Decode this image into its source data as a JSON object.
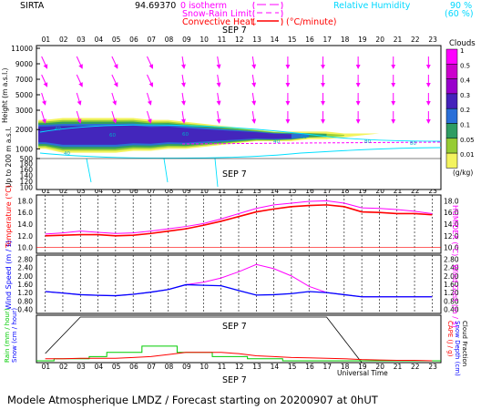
{
  "header": {
    "station": "SIRTA",
    "coords": "94.69370",
    "legend_isotherm": "0 isotherm",
    "legend_snow_rain": "Snow-Rain Limit",
    "legend_convective": "Convective Heat.",
    "legend_convective_unit": "(°C/minute)",
    "legend_rh": "Relative Humidity",
    "rh_90": "90 %",
    "rh_60": "(60 %)"
  },
  "colors": {
    "isotherm": "#ff00ff",
    "convective": "#ff0000",
    "rh": "#00e0ff",
    "temperature": "#ff0000",
    "humidex": "#ff00ff",
    "wind": "#0000ff",
    "gust": "#ff00ff",
    "rain": "#00cc00",
    "snow": "#000000",
    "cape": "#ff0000"
  },
  "date_label": "SEP  7",
  "hours": [
    "01",
    "02",
    "03",
    "04",
    "05",
    "06",
    "07",
    "08",
    "09",
    "10",
    "11",
    "12",
    "13",
    "14",
    "15",
    "16",
    "17",
    "18",
    "19",
    "20",
    "21",
    "22",
    "23"
  ],
  "panel_clouds": {
    "ylabel": "Height  (m a.s.l.)",
    "ylabel2": "Up to 200 m a.s.l.",
    "yticks_upper": [
      "11000",
      "9000",
      "7000",
      "5000",
      "3000",
      "2000",
      "1000",
      "500"
    ],
    "yticks_lower": [
      "180",
      "160",
      "140",
      "120",
      "100"
    ],
    "legend_title": "Clouds",
    "legend_unit": "(g/kg)",
    "legend_values": [
      "1",
      "0.5",
      "0.4",
      "0.3",
      "0.2",
      "0.1",
      "0.05",
      "0.01"
    ],
    "legend_colors": [
      "#ff00ff",
      "#cc00cc",
      "#9900cc",
      "#4422bb",
      "#2a6fd8",
      "#2f9c62",
      "#96cc33",
      "#f3f35e"
    ],
    "contour_labels": [
      "40",
      "40",
      "60",
      "60",
      "40",
      "60",
      "80",
      "80"
    ]
  },
  "panel_temp": {
    "ylabel": "Temperature (°C)",
    "ylabel_right": "HUMIDEX (°C)",
    "yticks": [
      "18.0",
      "16.0",
      "14.0",
      "12.0",
      "10.0"
    ]
  },
  "panel_wind": {
    "ylabel": "Wind Speed (m / s)",
    "ylabel_right": "Wind Gust (m / s)",
    "yticks": [
      "2.80",
      "2.40",
      "2.00",
      "1.60",
      "1.20",
      "0.80",
      "0.40"
    ]
  },
  "panel_precip": {
    "ylabel": "Rain (mm / hour)",
    "ylabel2": "Snow (cm / hour)",
    "ylabel_right": "CAPE (J / g)",
    "ylabel_right2": "Snow Depth (cm)",
    "ylabel_right3": "Cloud Fraction"
  },
  "xlabel": "Universal Time",
  "footer": "Modele Atmospherique LMDZ / Forecast starting on 20200907 at 0hUT",
  "chart_data": [
    {
      "type": "heatmap",
      "title": "Clouds",
      "x": [
        "01",
        "02",
        "03",
        "04",
        "05",
        "06",
        "07",
        "08",
        "09",
        "10",
        "11",
        "12",
        "13",
        "14",
        "15",
        "16",
        "17",
        "18",
        "19",
        "20",
        "21",
        "22",
        "23"
      ],
      "ylabel": "Height (m a.s.l.)",
      "unit": "g/kg",
      "levels": [
        0.01,
        0.05,
        0.1,
        0.2,
        0.3,
        0.4,
        0.5,
        1
      ],
      "layer_base_m": [
        1000,
        800,
        800,
        800,
        800,
        900,
        900,
        1000,
        1000,
        1100,
        1200,
        1300,
        1400,
        1400,
        1400,
        1500,
        1500,
        1600,
        1700,
        1800,
        1800,
        1800,
        1800
      ],
      "layer_top_m": [
        2500,
        2600,
        2600,
        2600,
        2600,
        2600,
        2500,
        2500,
        2400,
        2300,
        2200,
        2100,
        2000,
        1900,
        1900,
        1900,
        1900,
        1800,
        1800,
        1800,
        1800,
        1800,
        1800
      ]
    },
    {
      "type": "line",
      "x": [
        "01",
        "02",
        "03",
        "04",
        "05",
        "06",
        "07",
        "08",
        "09",
        "10",
        "11",
        "12",
        "13",
        "14",
        "15",
        "16",
        "17",
        "18",
        "19",
        "20",
        "21",
        "22",
        "23"
      ],
      "ylabel": "Temperature (°C)",
      "ylim": [
        9,
        19
      ],
      "series": [
        {
          "name": "Temperature",
          "values": [
            12.0,
            12.1,
            12.2,
            12.2,
            12.0,
            12.1,
            12.4,
            12.8,
            13.2,
            13.8,
            14.5,
            15.3,
            16.1,
            16.6,
            17.0,
            17.2,
            17.3,
            17.0,
            16.1,
            16.0,
            15.8,
            15.8,
            15.6
          ]
        },
        {
          "name": "HUMIDEX",
          "values": [
            12.3,
            12.5,
            12.8,
            12.6,
            12.4,
            12.5,
            12.8,
            13.2,
            13.6,
            14.1,
            14.9,
            15.8,
            16.7,
            17.3,
            17.6,
            17.9,
            18.0,
            17.6,
            16.8,
            16.7,
            16.5,
            16.2,
            15.8
          ]
        }
      ]
    },
    {
      "type": "line",
      "x": [
        "01",
        "02",
        "03",
        "04",
        "05",
        "06",
        "07",
        "08",
        "09",
        "10",
        "11",
        "12",
        "13",
        "14",
        "15",
        "16",
        "17",
        "18",
        "19",
        "20",
        "21",
        "22",
        "23"
      ],
      "ylabel": "Wind Speed (m / s)",
      "ylim": [
        0.2,
        3.0
      ],
      "series": [
        {
          "name": "Wind Speed",
          "values": [
            1.25,
            1.18,
            1.1,
            1.07,
            1.05,
            1.12,
            1.22,
            1.35,
            1.58,
            1.55,
            1.53,
            1.3,
            1.08,
            1.1,
            1.15,
            1.25,
            1.2,
            1.1,
            1.0,
            1.0,
            1.0,
            1.0,
            1.0
          ]
        },
        {
          "name": "Wind Gust",
          "values": [
            1.25,
            1.18,
            1.1,
            1.07,
            1.05,
            1.12,
            1.22,
            1.35,
            1.58,
            1.7,
            1.9,
            2.2,
            2.55,
            2.35,
            2.0,
            1.5,
            1.2,
            1.1,
            1.0,
            1.0,
            1.0,
            1.0,
            1.0
          ]
        }
      ]
    },
    {
      "type": "line",
      "x": [
        "01",
        "02",
        "03",
        "04",
        "05",
        "06",
        "07",
        "08",
        "09",
        "10",
        "11",
        "12",
        "13",
        "14",
        "15",
        "16",
        "17",
        "18",
        "19",
        "20",
        "21",
        "22",
        "23"
      ],
      "series": [
        {
          "name": "Rain",
          "values": [
            0.0,
            0.05,
            0.05,
            0.1,
            0.2,
            0.2,
            0.35,
            0.35,
            0.2,
            0.2,
            0.1,
            0.1,
            0.05,
            0.05,
            0.0,
            0.0,
            0.0,
            0.0,
            0.0,
            0.0,
            0.0,
            0.0,
            0.0
          ]
        },
        {
          "name": "CAPE",
          "values": [
            0.05,
            0.05,
            0.06,
            0.06,
            0.06,
            0.08,
            0.1,
            0.15,
            0.2,
            0.2,
            0.2,
            0.17,
            0.12,
            0.1,
            0.08,
            0.07,
            0.06,
            0.05,
            0.03,
            0.02,
            0.01,
            0.01,
            0.0
          ]
        },
        {
          "name": "Cloud Fraction",
          "values": [
            0.2,
            0.6,
            1.0,
            1.0,
            1.0,
            1.0,
            1.0,
            1.0,
            1.0,
            1.0,
            1.0,
            1.0,
            1.0,
            1.0,
            1.0,
            1.0,
            1.0,
            0.5,
            0.0,
            0.0,
            0.0,
            0.0,
            0.0
          ]
        }
      ]
    }
  ]
}
